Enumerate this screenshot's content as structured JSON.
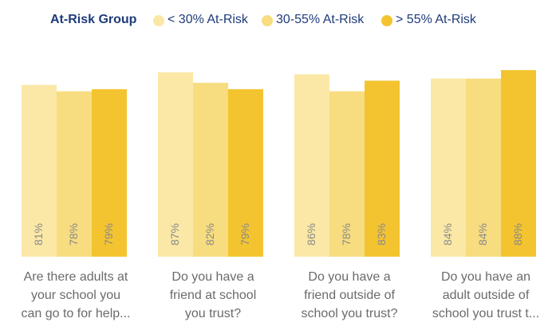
{
  "legend": {
    "title": "At-Risk Group",
    "items": [
      {
        "label": "< 30% At-Risk",
        "color": "#fbe8a6"
      },
      {
        "label": "30-55% At-Risk",
        "color": "#f7dc80"
      },
      {
        "label": "> 55% At-Risk",
        "color": "#f4c430"
      }
    ]
  },
  "chart_data": {
    "type": "bar",
    "categories": [
      "Are there adults at your school you can go to for help...",
      "Do you have a friend at school you trust?",
      "Do you have a friend outside of school you trust?",
      "Do you have an adult outside of school you trust t..."
    ],
    "category_lines": [
      [
        "Are there adults at",
        "your school you",
        "can go to for help..."
      ],
      [
        "Do you have a",
        "friend at school",
        "you trust?"
      ],
      [
        "Do you have a",
        "friend outside of",
        "school you trust?"
      ],
      [
        "Do you have an",
        "adult outside of",
        "school you trust t..."
      ]
    ],
    "series": [
      {
        "name": "< 30% At-Risk",
        "color": "#fbe8a6",
        "values": [
          81,
          87,
          86,
          84
        ],
        "labels": [
          "81%",
          "87%",
          "86%",
          "84%"
        ]
      },
      {
        "name": "30-55% At-Risk",
        "color": "#f7dc80",
        "values": [
          78,
          82,
          78,
          84
        ],
        "labels": [
          "78%",
          "82%",
          "78%",
          "84%"
        ]
      },
      {
        "name": "> 55% At-Risk",
        "color": "#f4c430",
        "values": [
          79,
          79,
          83,
          88
        ],
        "labels": [
          "79%",
          "79%",
          "83%",
          "88%"
        ]
      }
    ],
    "ylim": [
      0,
      100
    ],
    "grid": false,
    "legend_position": "top"
  }
}
